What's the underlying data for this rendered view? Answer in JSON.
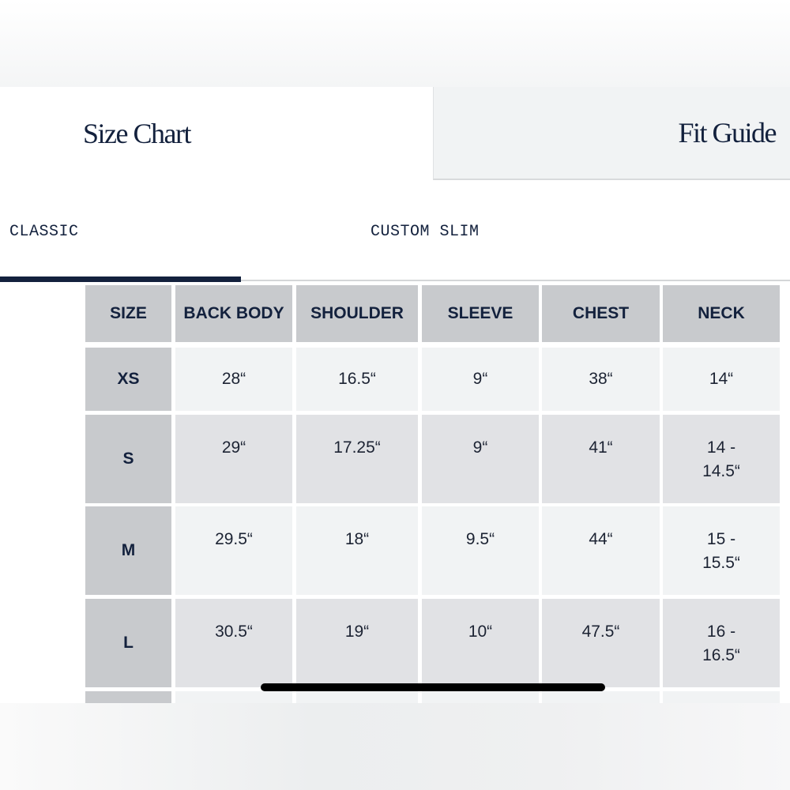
{
  "tabs": [
    {
      "label": "Size Chart",
      "active": true
    },
    {
      "label": "Fit Guide",
      "active": false
    }
  ],
  "fit_tabs": [
    {
      "label": "CLASSIC",
      "active": true
    },
    {
      "label": "CUSTOM SLIM",
      "active": false
    }
  ],
  "table": {
    "headers": [
      "SIZE",
      "BACK BODY",
      "SHOULDER",
      "SLEEVE",
      "CHEST",
      "NECK"
    ],
    "rows": [
      [
        "XS",
        "28“",
        "16.5“",
        "9“",
        "38“",
        "14“"
      ],
      [
        "S",
        "29“",
        "17.25“",
        "9“",
        "41“",
        "14 - 14.5“"
      ],
      [
        "M",
        "29.5“",
        "18“",
        "9.5“",
        "44“",
        "15 - 15.5“"
      ],
      [
        "L",
        "30.5“",
        "19“",
        "10“",
        "47.5“",
        "16 - 16.5“"
      ]
    ]
  },
  "colors": {
    "navy": "#13213d",
    "header_bg": "#c8cacd",
    "row_light": "#f1f3f4",
    "row_dark": "#e1e2e5"
  }
}
